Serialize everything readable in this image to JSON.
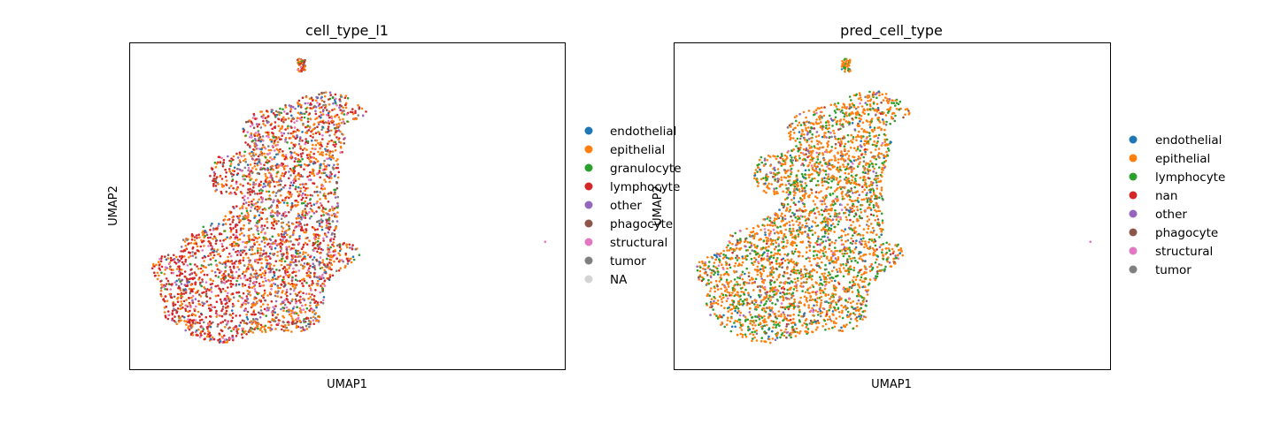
{
  "chart_data": [
    {
      "type": "scatter",
      "title": "cell_type_l1",
      "xlabel": "UMAP1",
      "ylabel": "UMAP2",
      "legend_position": "right",
      "grid": false,
      "categories": [
        {
          "name": "endothelial",
          "color": "#1f77b4"
        },
        {
          "name": "epithelial",
          "color": "#ff7f0e"
        },
        {
          "name": "granulocyte",
          "color": "#2ca02c"
        },
        {
          "name": "lymphocyte",
          "color": "#d62728"
        },
        {
          "name": "other",
          "color": "#9467bd"
        },
        {
          "name": "phagocyte",
          "color": "#8c564b"
        },
        {
          "name": "structural",
          "color": "#e377c2"
        },
        {
          "name": "tumor",
          "color": "#7f7f7f"
        },
        {
          "name": "NA",
          "color": "#d3d3d3"
        }
      ]
    },
    {
      "type": "scatter",
      "title": "pred_cell_type",
      "xlabel": "UMAP1",
      "ylabel": "UMAP2",
      "legend_position": "right",
      "grid": false,
      "categories": [
        {
          "name": "endothelial",
          "color": "#1f77b4"
        },
        {
          "name": "epithelial",
          "color": "#ff7f0e"
        },
        {
          "name": "lymphocyte",
          "color": "#2ca02c"
        },
        {
          "name": "nan",
          "color": "#d62728"
        },
        {
          "name": "other",
          "color": "#9467bd"
        },
        {
          "name": "phagocyte",
          "color": "#8c564b"
        },
        {
          "name": "structural",
          "color": "#e377c2"
        },
        {
          "name": "tumor",
          "color": "#7f7f7f"
        }
      ]
    }
  ]
}
